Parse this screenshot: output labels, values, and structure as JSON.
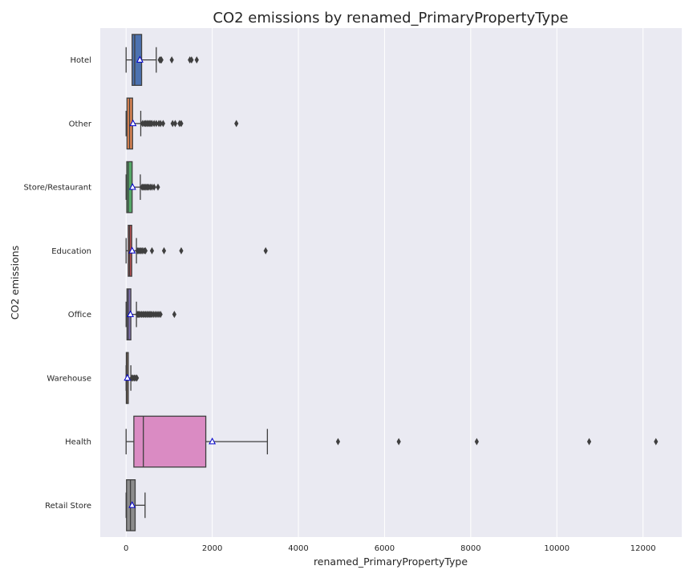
{
  "chart_data": {
    "type": "boxplot",
    "orientation": "horizontal",
    "title": "CO2 emissions by renamed_PrimaryPropertyType",
    "xlabel": "renamed_PrimaryPropertyType",
    "ylabel": "CO2 emissions",
    "xlim": [
      -600,
      12900
    ],
    "xticks": [
      0,
      2000,
      4000,
      6000,
      8000,
      10000,
      12000
    ],
    "grid": true,
    "legend": "none",
    "mean_marker": "triangle",
    "categories": [
      "Hotel",
      "Other",
      "Store/Restaurant",
      "Education",
      "Office",
      "Warehouse",
      "Health",
      "Retail Store"
    ],
    "boxes": [
      {
        "category": "Hotel",
        "color": "#4c72b0",
        "whisker_low": 0,
        "q1": 140,
        "median": 200,
        "q3": 360,
        "whisker_high": 700,
        "mean": 320,
        "outliers": [
          780,
          800,
          820,
          1060,
          1480,
          1520,
          1640
        ]
      },
      {
        "category": "Other",
        "color": "#dd8452",
        "whisker_low": 0,
        "q1": 20,
        "median": 80,
        "q3": 150,
        "whisker_high": 340,
        "mean": 160,
        "outliers": [
          380,
          420,
          450,
          480,
          510,
          540,
          570,
          600,
          650,
          700,
          760,
          800,
          860,
          1080,
          1140,
          1240,
          1280,
          2560
        ]
      },
      {
        "category": "Store/Restaurant",
        "color": "#55a868",
        "whisker_low": 0,
        "q1": 15,
        "median": 50,
        "q3": 140,
        "whisker_high": 330,
        "mean": 150,
        "outliers": [
          370,
          400,
          430,
          460,
          490,
          520,
          560,
          600,
          650,
          740
        ]
      },
      {
        "category": "Education",
        "color": "#c44e52",
        "whisker_low": 0,
        "q1": 50,
        "median": 80,
        "q3": 130,
        "whisker_high": 240,
        "mean": 140,
        "outliers": [
          260,
          290,
          320,
          350,
          380,
          420,
          450,
          600,
          880,
          1280,
          3240
        ]
      },
      {
        "category": "Office",
        "color": "#8172b3",
        "whisker_low": 0,
        "q1": 20,
        "median": 50,
        "q3": 110,
        "whisker_high": 240,
        "mean": 100,
        "outliers": [
          260,
          280,
          300,
          330,
          360,
          390,
          420,
          450,
          480,
          510,
          540,
          570,
          600,
          640,
          680,
          720,
          760,
          800,
          1120
        ]
      },
      {
        "category": "Warehouse",
        "color": "#937860",
        "whisker_low": 0,
        "q1": 5,
        "median": 15,
        "q3": 50,
        "whisker_high": 110,
        "mean": 30,
        "outliers": [
          130,
          160,
          190,
          220,
          250
        ]
      },
      {
        "category": "Health",
        "color": "#da8bc3",
        "whisker_low": 0,
        "q1": 180,
        "median": 400,
        "q3": 1850,
        "whisker_high": 3280,
        "mean": 2000,
        "outliers": [
          4920,
          6330,
          8140,
          10750,
          12300
        ]
      },
      {
        "category": "Retail Store",
        "color": "#8c8c8c",
        "whisker_low": 0,
        "q1": 10,
        "median": 100,
        "q3": 210,
        "whisker_high": 440,
        "mean": 140,
        "outliers": []
      }
    ]
  }
}
